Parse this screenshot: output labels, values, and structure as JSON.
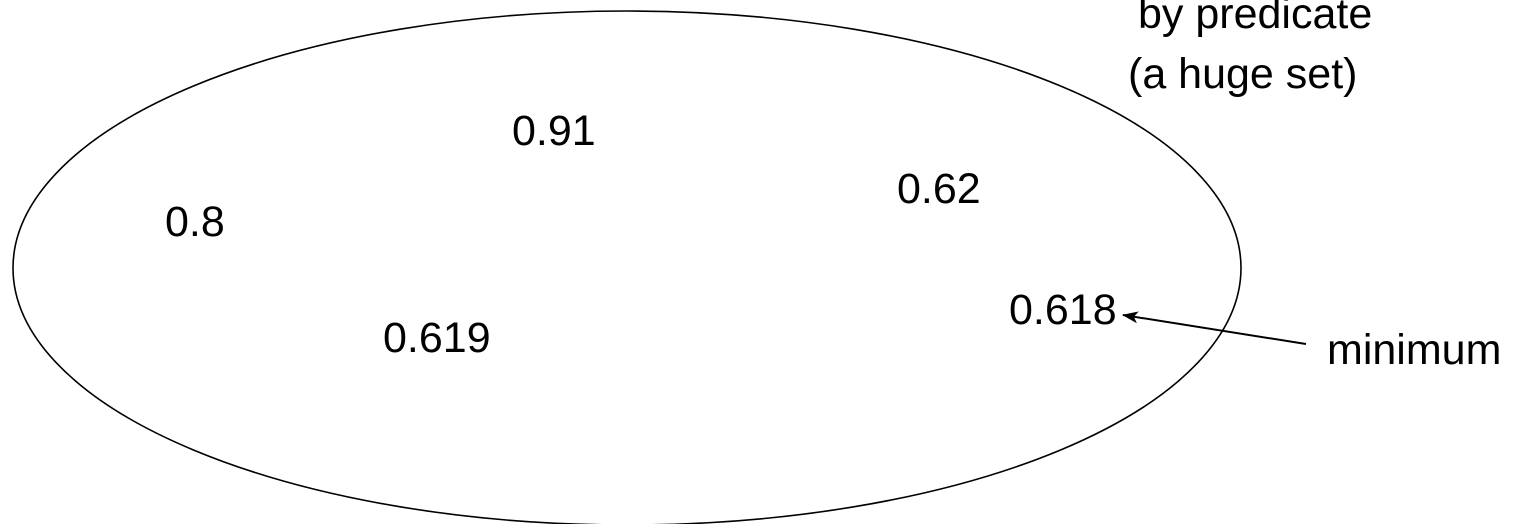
{
  "colors": {
    "background": "#ffffff",
    "stroke": "#000000",
    "text": "#000000"
  },
  "set": {
    "caption_line1": "by predicate",
    "caption_line2": "(a huge set)",
    "values": {
      "v1": "0.91",
      "v2": "0.62",
      "v3": "0.8",
      "v4": "0.619",
      "v5": "0.618"
    }
  },
  "annotation": {
    "label": "minimum",
    "points_to": "0.618"
  }
}
